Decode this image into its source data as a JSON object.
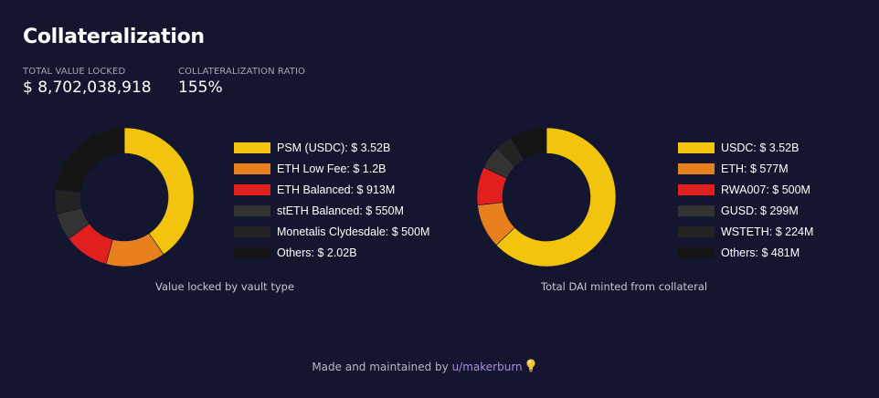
{
  "header": {
    "title": "Collateralization",
    "tvl_label": "TOTAL VALUE LOCKED",
    "tvl_value": "$ 8,702,038,918",
    "ratio_label": "COLLATERALIZATION RATIO",
    "ratio_value": "155%"
  },
  "chart_data": [
    {
      "type": "pie",
      "donut": true,
      "caption": "Value locked by vault type",
      "legend_position": "right",
      "slices": [
        {
          "label": "PSM (USDC): $ 3.52B",
          "value": 3.52,
          "color": "#f2c40e"
        },
        {
          "label": "ETH Low Fee: $ 1.2B",
          "value": 1.2,
          "color": "#e8801e"
        },
        {
          "label": "ETH Balanced: $ 913M",
          "value": 0.913,
          "color": "#e21f1f"
        },
        {
          "label": "stETH Balanced: $ 550M",
          "value": 0.55,
          "color": "#333333"
        },
        {
          "label": "Monetalis Clydesdale: $ 500M",
          "value": 0.5,
          "color": "#232323"
        },
        {
          "label": "Others: $ 2.02B",
          "value": 2.02,
          "color": "#141414"
        }
      ]
    },
    {
      "type": "pie",
      "donut": true,
      "caption": "Total DAI minted from collateral",
      "legend_position": "right",
      "slices": [
        {
          "label": "USDC: $ 3.52B",
          "value": 3.52,
          "color": "#f2c40e"
        },
        {
          "label": "ETH: $ 577M",
          "value": 0.577,
          "color": "#e8801e"
        },
        {
          "label": "RWA007: $ 500M",
          "value": 0.5,
          "color": "#e21f1f"
        },
        {
          "label": "GUSD: $ 299M",
          "value": 0.299,
          "color": "#333333"
        },
        {
          "label": "WSTETH: $ 224M",
          "value": 0.224,
          "color": "#232323"
        },
        {
          "label": "Others: $ 481M",
          "value": 0.481,
          "color": "#141414"
        }
      ]
    }
  ],
  "footer": {
    "text": "Made and maintained by ",
    "link": "u/makerburn",
    "bulb_icon": "lightbulb-icon"
  }
}
